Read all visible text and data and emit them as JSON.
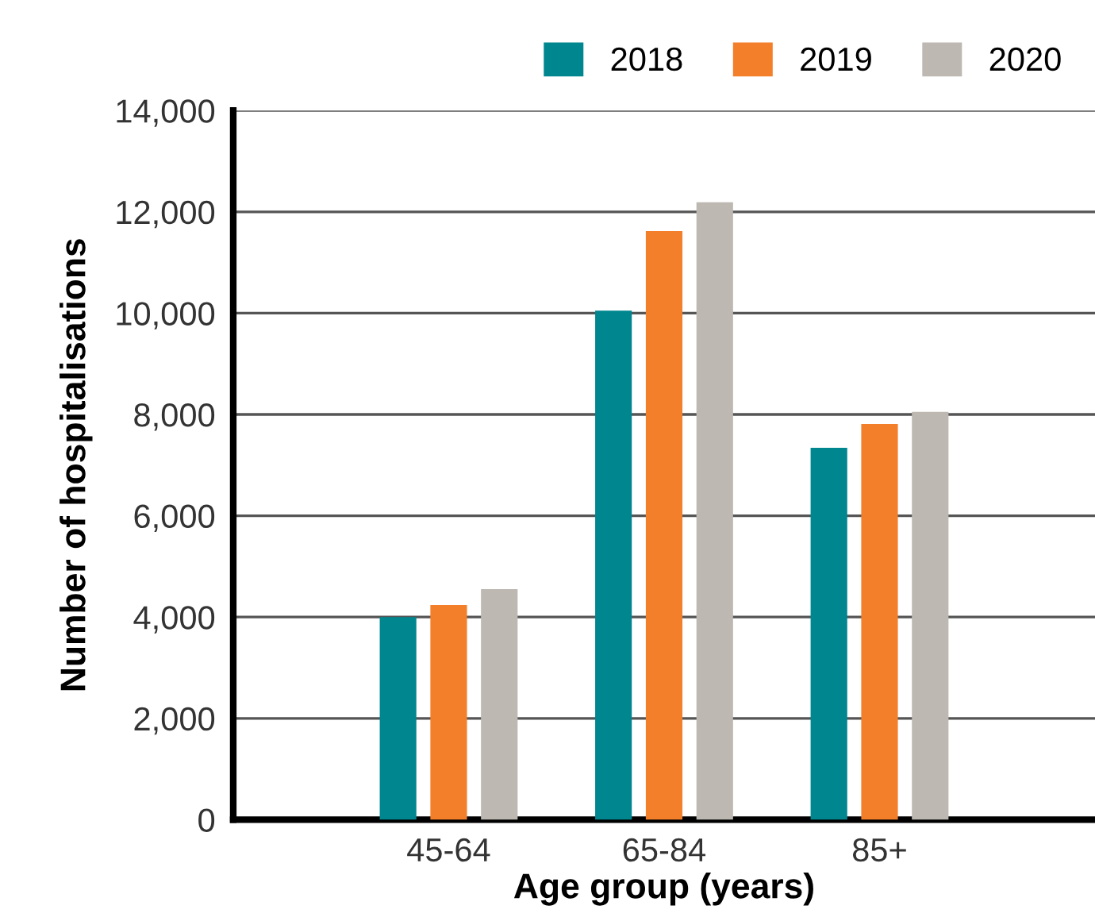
{
  "chart_data": {
    "type": "bar",
    "xlabel": "Age group (years)",
    "ylabel": "Number of hospitalisations",
    "categories": [
      "45-64",
      "65-84",
      "85+"
    ],
    "series": [
      {
        "name": "2018",
        "color": "#00868f",
        "values": [
          4000,
          10050,
          7340
        ]
      },
      {
        "name": "2019",
        "color": "#f47f2a",
        "values": [
          4240,
          11620,
          7810
        ]
      },
      {
        "name": "2020",
        "color": "#bdb8b2",
        "values": [
          4550,
          12190,
          8050
        ]
      }
    ],
    "ylim": [
      0,
      14000
    ],
    "yticks": [
      {
        "value": 0,
        "label": "0"
      },
      {
        "value": 2000,
        "label": "2,000"
      },
      {
        "value": 4000,
        "label": "4,000"
      },
      {
        "value": 6000,
        "label": "6,000"
      },
      {
        "value": 8000,
        "label": "8,000"
      },
      {
        "value": 10000,
        "label": "10,000"
      },
      {
        "value": 12000,
        "label": "12,000"
      },
      {
        "value": 14000,
        "label": "14,000"
      }
    ],
    "grid": "y",
    "legend": "top right"
  }
}
